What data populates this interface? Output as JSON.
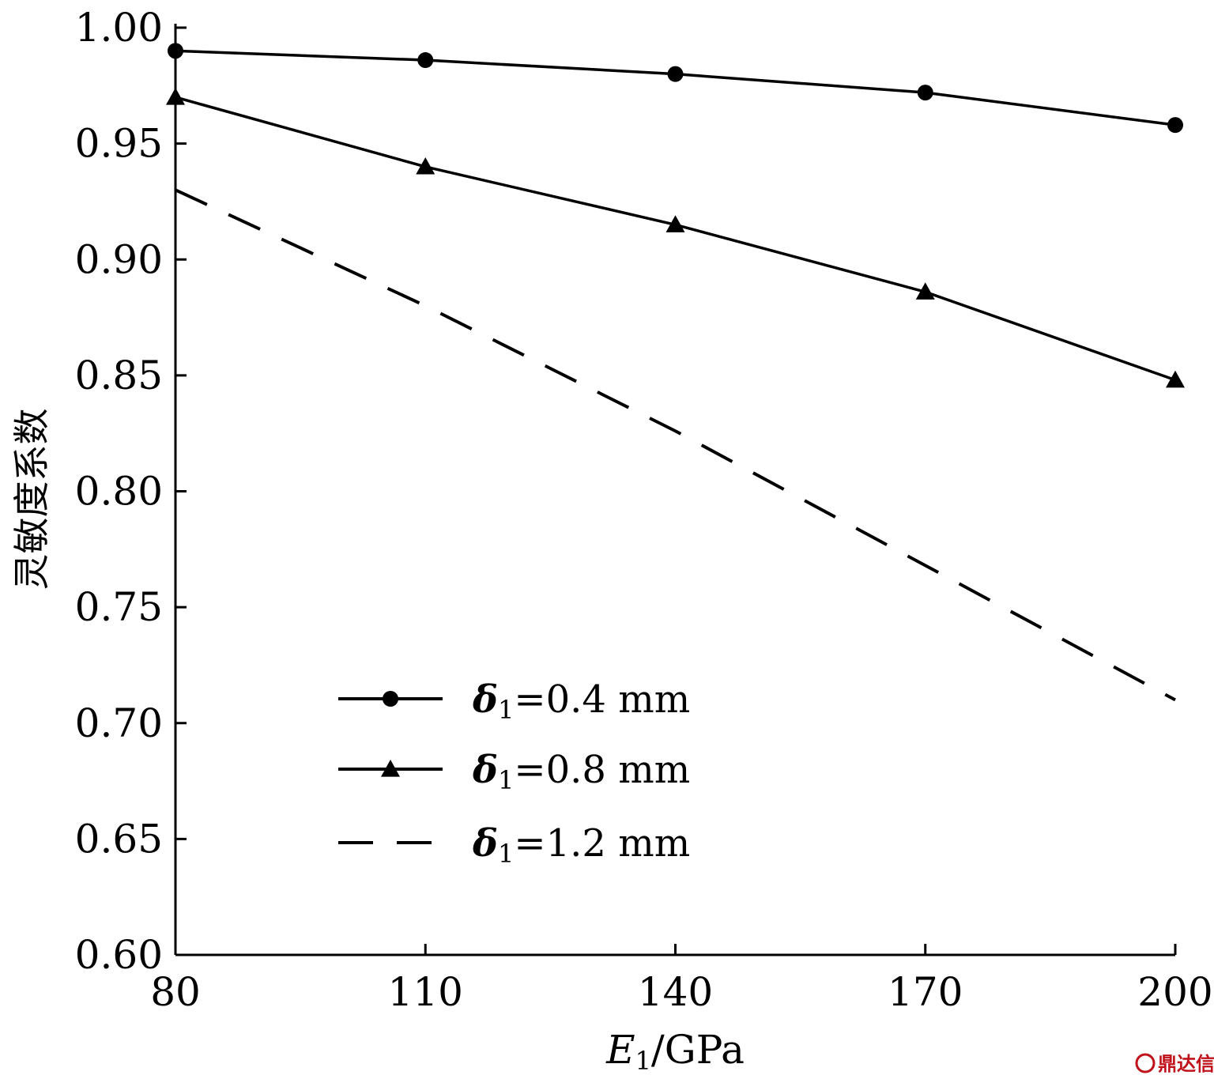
{
  "chart_data": {
    "type": "line",
    "title": "",
    "xlabel": {
      "main": "E",
      "sub": "1",
      "unit": "/GPa"
    },
    "ylabel": "灵敏度系数",
    "xlim": [
      80,
      200
    ],
    "ylim": [
      0.6,
      1.0
    ],
    "xticks": [
      80,
      110,
      140,
      170,
      200
    ],
    "xtick_labels": [
      "80",
      "110",
      "140",
      "170",
      "200"
    ],
    "yticks": [
      0.6,
      0.65,
      0.7,
      0.75,
      0.8,
      0.85,
      0.9,
      0.95,
      1.0
    ],
    "ytick_labels": [
      "0.60",
      "0.65",
      "0.70",
      "0.75",
      "0.80",
      "0.85",
      "0.90",
      "0.95",
      "1.00"
    ],
    "grid": false,
    "legend_position": "bottom-left",
    "x": [
      80,
      110,
      140,
      170,
      200
    ],
    "series": [
      {
        "name": "δ1=0.4 mm",
        "symbol": "δ",
        "sub": "1",
        "value_text": "=0.4 mm",
        "values": [
          0.99,
          0.986,
          0.98,
          0.972,
          0.958
        ],
        "marker": "circle",
        "dash": "solid",
        "color": "#000000"
      },
      {
        "name": "δ1=0.8 mm",
        "symbol": "δ",
        "sub": "1",
        "value_text": "=0.8 mm",
        "values": [
          0.97,
          0.94,
          0.915,
          0.886,
          0.848
        ],
        "marker": "triangle",
        "dash": "solid",
        "color": "#000000"
      },
      {
        "name": "δ1=1.2 mm",
        "symbol": "δ",
        "sub": "1",
        "value_text": "=1.2 mm",
        "values": [
          0.93,
          0.88,
          0.826,
          0.768,
          0.71
        ],
        "marker": "none",
        "dash": "dashed",
        "color": "#000000"
      }
    ]
  },
  "watermark": {
    "text": "鼎达信",
    "color": "#c0121a"
  }
}
